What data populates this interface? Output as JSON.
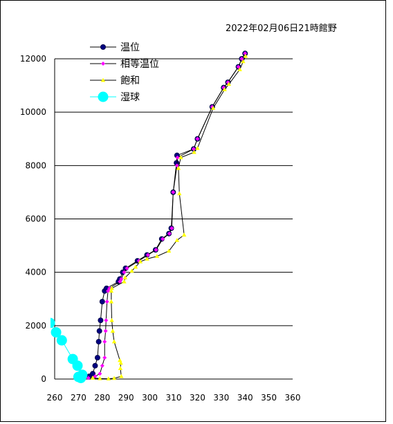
{
  "chart_data": {
    "type": "line",
    "title": "2022年02月06日21時館野",
    "xlabel": "",
    "ylabel": "",
    "xlim": [
      260,
      360
    ],
    "ylim": [
      0,
      12000
    ],
    "x_ticks": [
      "260",
      "270",
      "280",
      "290",
      "300",
      "310",
      "320",
      "330",
      "340",
      "350",
      "360"
    ],
    "y_ticks": [
      "0",
      "2000",
      "4000",
      "6000",
      "8000",
      "10000",
      "12000"
    ],
    "grid": "horizontal",
    "legend_position": "top-left",
    "series": [
      {
        "name": "温位",
        "color": "#000080",
        "marker": "circle",
        "points": [
          [
            272.0,
            40
          ],
          [
            274.5,
            100
          ],
          [
            276.0,
            200
          ],
          [
            277.0,
            500
          ],
          [
            278.0,
            800
          ],
          [
            278.5,
            1400
          ],
          [
            278.8,
            1800
          ],
          [
            279.3,
            2200
          ],
          [
            280.0,
            2900
          ],
          [
            281.0,
            3300
          ],
          [
            281.8,
            3400
          ],
          [
            286.8,
            3650
          ],
          [
            287.4,
            3750
          ],
          [
            288.6,
            4000
          ],
          [
            289.8,
            4150
          ],
          [
            294.8,
            4430
          ],
          [
            298.8,
            4650
          ],
          [
            302.4,
            4840
          ],
          [
            305.0,
            5250
          ],
          [
            308.0,
            5450
          ],
          [
            309.0,
            5650
          ],
          [
            309.8,
            7000
          ],
          [
            311.2,
            8100
          ],
          [
            311.4,
            8380
          ],
          [
            318.4,
            8620
          ],
          [
            320.0,
            9000
          ],
          [
            326.2,
            10200
          ],
          [
            331.0,
            10920
          ],
          [
            332.8,
            11120
          ],
          [
            337.2,
            11700
          ],
          [
            338.6,
            12000
          ],
          [
            340.0,
            12200
          ]
        ]
      },
      {
        "name": "相等温位",
        "color": "#ff00ff",
        "marker": "diamond",
        "points": [
          [
            274.2,
            40
          ],
          [
            277.0,
            100
          ],
          [
            279.0,
            200
          ],
          [
            280.0,
            500
          ],
          [
            281.0,
            800
          ],
          [
            281.0,
            1400
          ],
          [
            281.4,
            1800
          ],
          [
            281.6,
            2200
          ],
          [
            282.0,
            2900
          ],
          [
            282.4,
            3300
          ],
          [
            283.0,
            3400
          ],
          [
            287.4,
            3650
          ],
          [
            288.0,
            3750
          ],
          [
            289.2,
            4000
          ],
          [
            290.4,
            4150
          ],
          [
            295.4,
            4430
          ],
          [
            299.2,
            4650
          ],
          [
            302.6,
            4840
          ],
          [
            305.4,
            5250
          ],
          [
            308.2,
            5450
          ],
          [
            309.2,
            5650
          ],
          [
            309.8,
            7000
          ],
          [
            311.4,
            8000
          ],
          [
            311.6,
            8300
          ],
          [
            318.4,
            8620
          ],
          [
            320.0,
            9000
          ],
          [
            326.2,
            10200
          ],
          [
            331.0,
            10920
          ],
          [
            332.8,
            11120
          ],
          [
            337.2,
            11700
          ],
          [
            338.6,
            12000
          ],
          [
            340.0,
            12200
          ]
        ]
      },
      {
        "name": "飽和",
        "color": "#ffff00",
        "marker": "triangle",
        "points": [
          [
            276.0,
            40
          ],
          [
            279.0,
            20
          ],
          [
            282.6,
            10
          ],
          [
            285.0,
            30
          ],
          [
            288.0,
            100
          ],
          [
            287.6,
            400
          ],
          [
            287.8,
            600
          ],
          [
            287.4,
            700
          ],
          [
            285.0,
            1400
          ],
          [
            284.4,
            1800
          ],
          [
            284.0,
            2200
          ],
          [
            283.8,
            2900
          ],
          [
            283.8,
            3300
          ],
          [
            284.0,
            3400
          ],
          [
            289.2,
            3650
          ],
          [
            289.6,
            3800
          ],
          [
            292.4,
            4050
          ],
          [
            294.0,
            4200
          ],
          [
            296.0,
            4400
          ],
          [
            298.8,
            4500
          ],
          [
            303.0,
            4600
          ],
          [
            308.0,
            4800
          ],
          [
            311.4,
            5200
          ],
          [
            314.4,
            5400
          ],
          [
            312.4,
            6950
          ],
          [
            312.0,
            7900
          ],
          [
            313.0,
            8300
          ],
          [
            318.6,
            8500
          ],
          [
            320.0,
            8650
          ],
          [
            326.6,
            10150
          ],
          [
            331.4,
            10850
          ],
          [
            333.2,
            11050
          ],
          [
            337.8,
            11600
          ],
          [
            339.2,
            11900
          ],
          [
            340.2,
            12100
          ]
        ]
      },
      {
        "name": "湿球",
        "color": "#00ffff",
        "marker": "big-circle",
        "points": [
          [
            258.0,
            2100
          ],
          [
            260.6,
            1750
          ],
          [
            263.0,
            1450
          ],
          [
            267.6,
            750
          ],
          [
            269.6,
            500
          ],
          [
            271.6,
            160
          ],
          [
            270.0,
            80
          ],
          [
            271.0,
            40
          ]
        ]
      }
    ]
  }
}
